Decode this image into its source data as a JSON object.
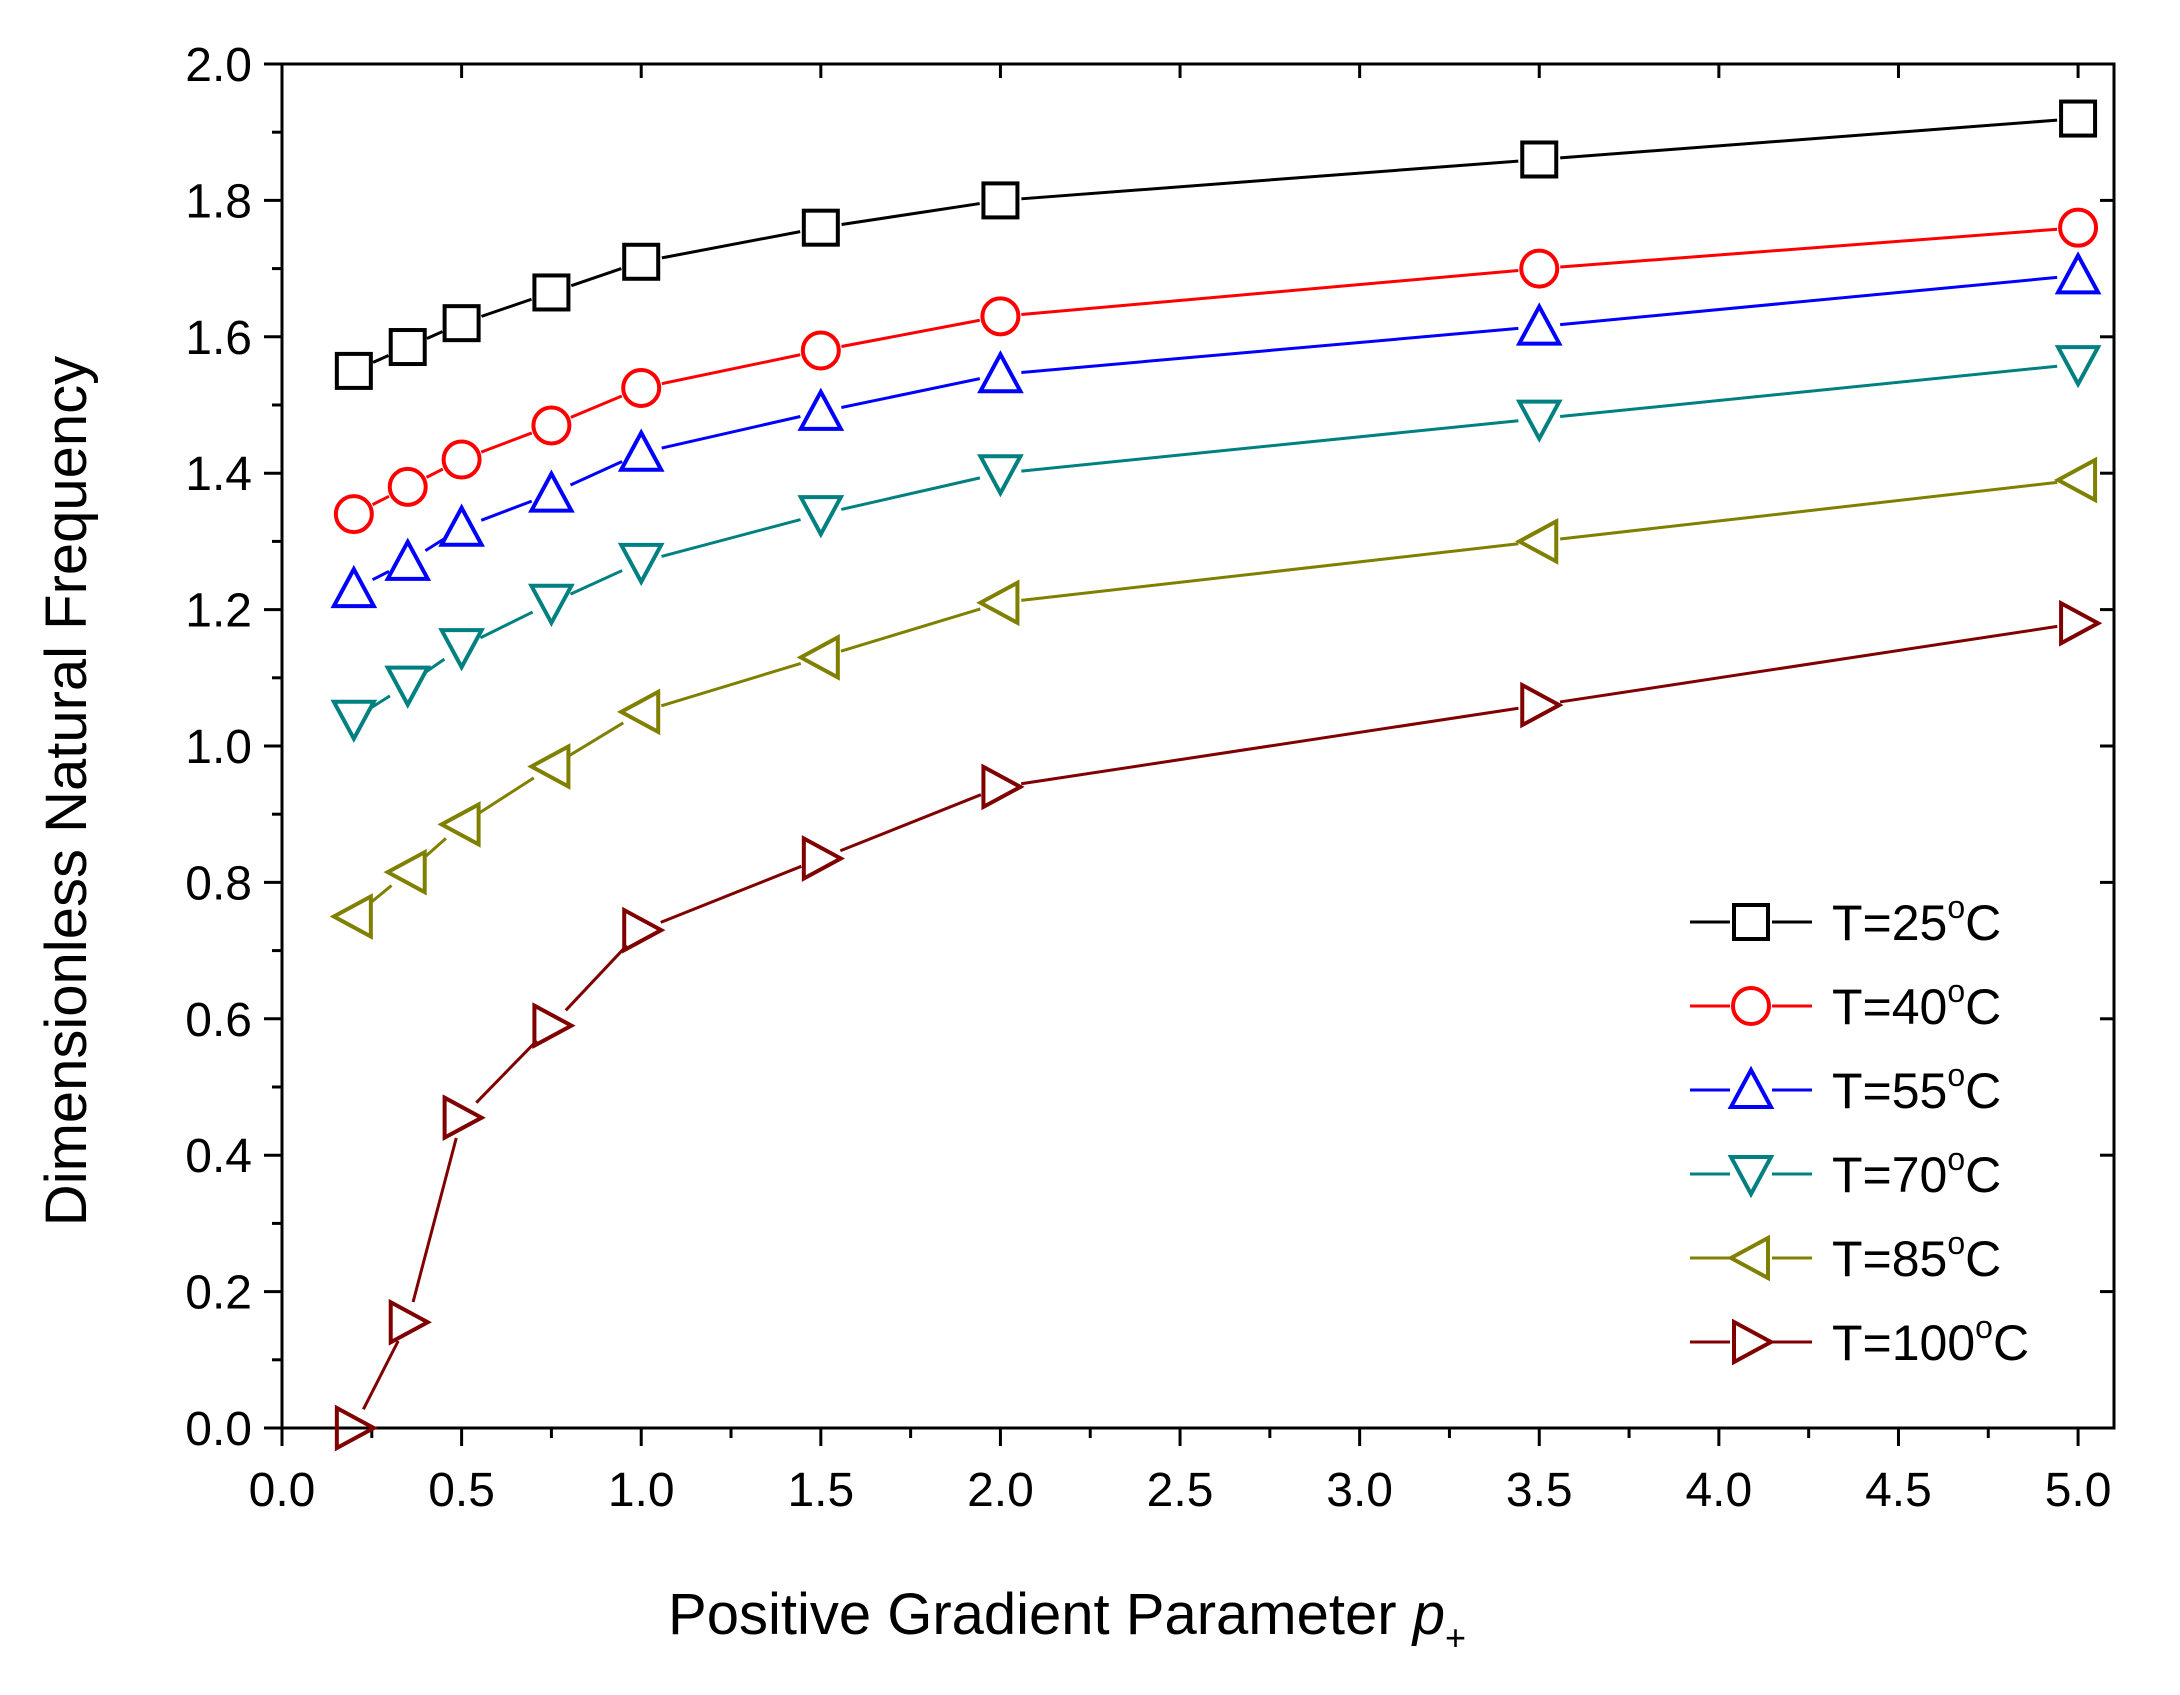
{
  "chart_data": {
    "type": "line",
    "title": "",
    "xlabel": "Positive Gradient Parameter",
    "xlabel_symbol": "p",
    "xlabel_subscript": "+",
    "ylabel": "Dimensionless Natural Frequency",
    "xlim": [
      0.0,
      5.1
    ],
    "ylim": [
      0.0,
      2.0
    ],
    "x_ticks": [
      0.0,
      0.5,
      1.0,
      1.5,
      2.0,
      2.5,
      3.0,
      3.5,
      4.0,
      4.5,
      5.0
    ],
    "y_ticks": [
      0.0,
      0.2,
      0.4,
      0.6,
      0.8,
      1.0,
      1.2,
      1.4,
      1.6,
      1.8,
      2.0
    ],
    "grid": false,
    "legend_position": "bottom-right",
    "x": [
      0.2,
      0.35,
      0.5,
      0.75,
      1.0,
      1.5,
      2.0,
      3.5,
      5.0
    ],
    "series": [
      {
        "name": "T=25°C",
        "prefix": "T=25",
        "degree": "o",
        "unit": "C",
        "color": "#000000",
        "marker": "square",
        "values": [
          1.55,
          1.585,
          1.62,
          1.665,
          1.71,
          1.76,
          1.8,
          1.86,
          1.92
        ]
      },
      {
        "name": "T=40°C",
        "prefix": "T=40",
        "degree": "o",
        "unit": "C",
        "color": "#ff0000",
        "marker": "circle",
        "values": [
          1.34,
          1.38,
          1.42,
          1.47,
          1.525,
          1.58,
          1.63,
          1.7,
          1.76
        ]
      },
      {
        "name": "T=55°C",
        "prefix": "T=55",
        "degree": "o",
        "unit": "C",
        "color": "#0000ff",
        "marker": "triangle-up",
        "values": [
          1.23,
          1.27,
          1.32,
          1.37,
          1.43,
          1.49,
          1.545,
          1.615,
          1.69
        ]
      },
      {
        "name": "T=70°C",
        "prefix": "T=70",
        "degree": "o",
        "unit": "C",
        "color": "#008080",
        "marker": "triangle-down",
        "values": [
          1.04,
          1.09,
          1.145,
          1.21,
          1.27,
          1.34,
          1.4,
          1.48,
          1.56
        ]
      },
      {
        "name": "T=85°C",
        "prefix": "T=85",
        "degree": "o",
        "unit": "C",
        "color": "#808000",
        "marker": "triangle-left",
        "values": [
          0.75,
          0.815,
          0.885,
          0.97,
          1.05,
          1.13,
          1.21,
          1.3,
          1.39
        ]
      },
      {
        "name": "T=100°C",
        "prefix": "T=100",
        "degree": "o",
        "unit": "C",
        "color": "#800000",
        "marker": "triangle-right",
        "values": [
          0.0,
          0.155,
          0.455,
          0.59,
          0.73,
          0.835,
          0.94,
          1.06,
          1.18
        ]
      }
    ]
  }
}
